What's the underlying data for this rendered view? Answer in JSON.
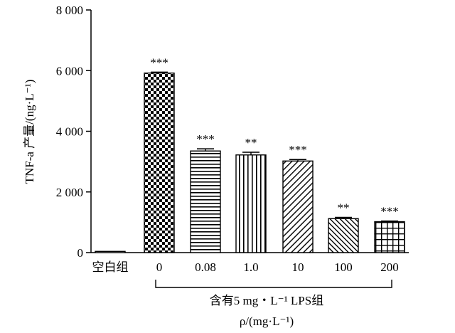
{
  "chart_data": {
    "type": "bar",
    "categories": [
      "空白组",
      "0",
      "0.08",
      "1.0",
      "10",
      "100",
      "200"
    ],
    "values": [
      40,
      5920,
      3350,
      3220,
      3020,
      1120,
      1020
    ],
    "errors": [
      0,
      30,
      70,
      90,
      50,
      40,
      20
    ],
    "significance": [
      "",
      "***",
      "***",
      "**",
      "***",
      "**",
      "***"
    ],
    "patterns": [
      "none",
      "checker",
      "hlines",
      "vlines",
      "diag-up",
      "diag-down",
      "grid"
    ],
    "ylabel": "TNF-a 产量/(ng·L⁻¹)",
    "yticks": [
      {
        "value": 0,
        "label": "0"
      },
      {
        "value": 2000,
        "label": "2 000"
      },
      {
        "value": 4000,
        "label": "4 000"
      },
      {
        "value": 6000,
        "label": "6 000"
      },
      {
        "value": 8000,
        "label": "8 000"
      }
    ],
    "ylim": [
      0,
      8000
    ],
    "group_label": "含有5 mg・L⁻¹ LPS组",
    "xlabel": "ρ/(mg·L⁻¹)",
    "grid": false,
    "legend": "none"
  }
}
